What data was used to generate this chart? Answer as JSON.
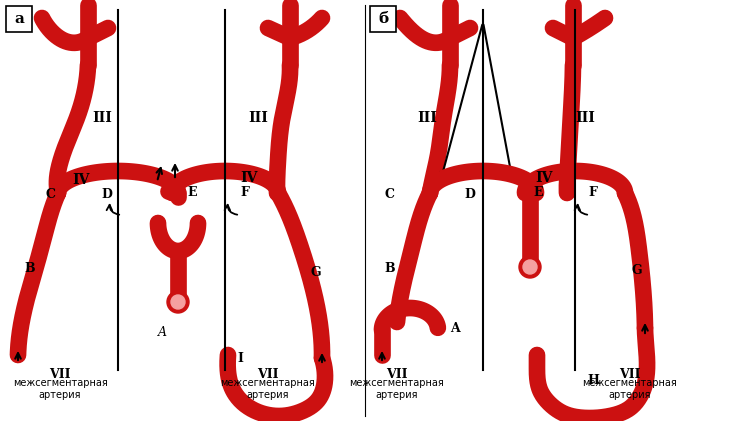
{
  "bg_color": "#ffffff",
  "red_color": "#cc1111",
  "label_a": "а",
  "label_b": "б",
  "roman_3": "III",
  "roman_4": "IV",
  "roman_7": "VII",
  "bottom_text_line1": "межсегментарная",
  "bottom_text_line2": "артерия"
}
